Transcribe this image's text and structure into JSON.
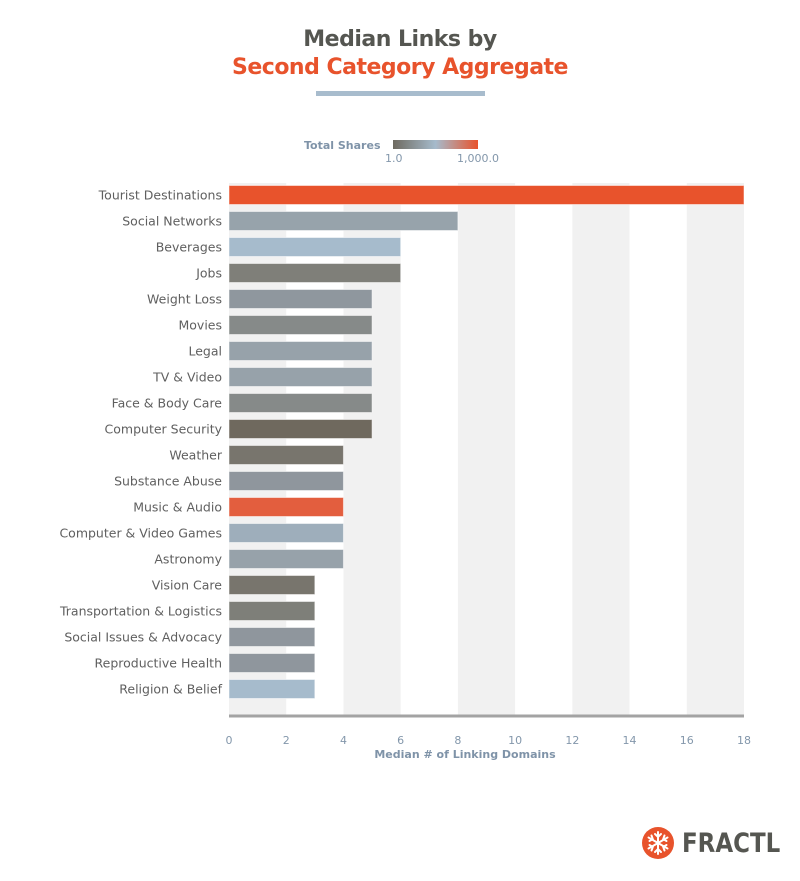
{
  "chart_data": {
    "type": "bar",
    "orientation": "horizontal",
    "title": "Median Links by",
    "subtitle": "Second Category Aggregate",
    "xlabel": "Median # of Linking Domains",
    "ylabel": "",
    "xlim": [
      0,
      18
    ],
    "xticks": [
      "0",
      "2",
      "4",
      "6",
      "8",
      "10",
      "12",
      "14",
      "16",
      "18"
    ],
    "grid": "alternating vertical bands every 2 units",
    "legend": {
      "title": "Total Shares",
      "type": "color-gradient",
      "min_label": "1.0",
      "max_label": "1,000.0",
      "colors": [
        "#6e6a60",
        "#a6bbcc",
        "#e8532c"
      ],
      "placement": "top-center"
    },
    "categories": [
      "Tourist Destinations",
      "Social Networks",
      "Beverages",
      "Jobs",
      "Weight Loss",
      "Movies",
      "Legal",
      "TV & Video",
      "Face & Body Care",
      "Computer Security",
      "Weather",
      "Substance Abuse",
      "Music & Audio",
      "Computer & Video Games",
      "Astronomy",
      "Vision Care",
      "Transportation & Logistics",
      "Social Issues & Advocacy",
      "Reproductive Health",
      "Religion & Belief"
    ],
    "values": [
      18,
      8,
      6,
      6,
      5,
      5,
      5,
      5,
      5,
      5,
      4,
      4,
      4,
      4,
      4,
      3,
      3,
      3,
      3,
      3
    ],
    "bar_colors": [
      "#e8532c",
      "#97a3ab",
      "#a6bbcc",
      "#7f7f79",
      "#8f979e",
      "#868a89",
      "#97a2aa",
      "#97a2aa",
      "#868a89",
      "#6f695e",
      "#78756d",
      "#8f969d",
      "#e35e3e",
      "#9eaebb",
      "#97a2aa",
      "#78756d",
      "#7e7f79",
      "#8f969d",
      "#8f969d",
      "#a6bbcc"
    ]
  },
  "branding": {
    "logo_text": "FRACTL",
    "logo_color": "#e8532c"
  }
}
